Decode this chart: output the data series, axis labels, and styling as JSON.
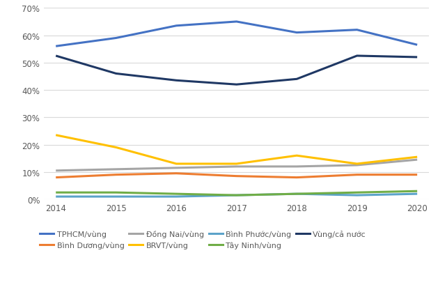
{
  "years": [
    2014,
    2015,
    2016,
    2017,
    2018,
    2019,
    2020
  ],
  "series": {
    "TPHCM/vùng": {
      "values": [
        56,
        59,
        63.5,
        65,
        61,
        62,
        56.5
      ],
      "color": "#4472C4",
      "linewidth": 2.2
    },
    "Bình Dương/vùng": {
      "values": [
        8,
        9,
        9.5,
        8.5,
        8,
        9,
        9
      ],
      "color": "#ED7D31",
      "linewidth": 2.2
    },
    "Đồng Nai/vùng": {
      "values": [
        10.5,
        11,
        11.5,
        12,
        12,
        12.5,
        14.5
      ],
      "color": "#A5A5A5",
      "linewidth": 2.2
    },
    "BRVT/vùng": {
      "values": [
        23.5,
        19,
        13,
        13,
        16,
        13,
        15.5
      ],
      "color": "#FFC000",
      "linewidth": 2.2
    },
    "Bình Phước/vùng": {
      "values": [
        1,
        1,
        1,
        1.5,
        2,
        1.5,
        2
      ],
      "color": "#5BA3C9",
      "linewidth": 2.2
    },
    "Tây Ninh/vùng": {
      "values": [
        2.5,
        2.5,
        2,
        1.5,
        2,
        2.5,
        3
      ],
      "color": "#70AD47",
      "linewidth": 2.2
    },
    "Vùng/cả nước": {
      "values": [
        52.5,
        46,
        43.5,
        42,
        44,
        52.5,
        52
      ],
      "color": "#1F3864",
      "linewidth": 2.2
    }
  },
  "ylim": [
    0,
    70
  ],
  "yticks": [
    0,
    10,
    20,
    30,
    40,
    50,
    60,
    70
  ],
  "ytick_labels": [
    "0%",
    "10%",
    "20%",
    "30%",
    "40%",
    "50%",
    "60%",
    "70%"
  ],
  "legend_row1": [
    "TPHCM/vùng",
    "Bình Dương/vùng",
    "Đồng Nai/vùng",
    "BRVT/vùng"
  ],
  "legend_row2": [
    "Bình Phước/vùng",
    "Tây Ninh/vùng",
    "Vùng/cả nước"
  ],
  "grid_color": "#D9D9D9",
  "bg_color": "#FFFFFF",
  "tick_color": "#595959",
  "tick_fontsize": 8.5
}
